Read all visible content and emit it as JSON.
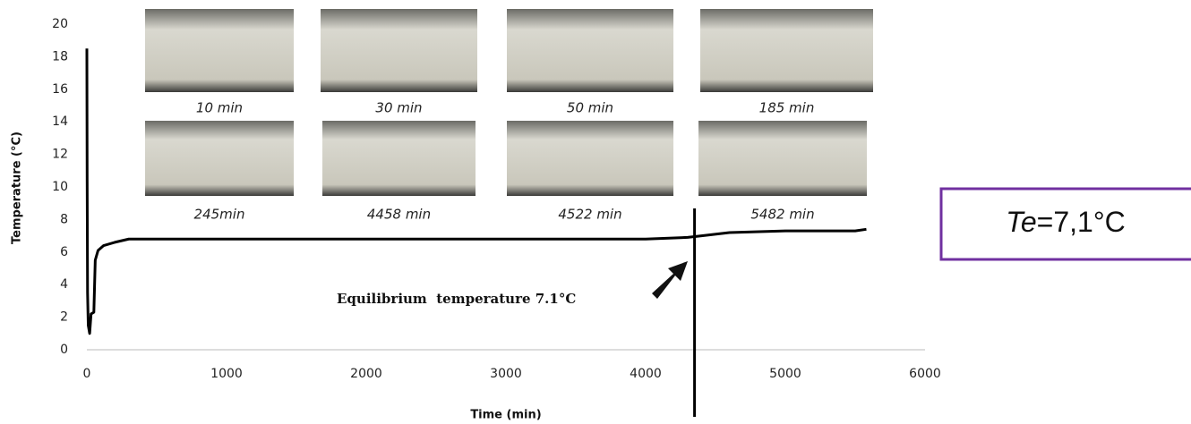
{
  "chart_data": {
    "type": "line",
    "x_label": "Time (min)",
    "y_label": "Temperature (°C)",
    "xlim": [
      0,
      6000
    ],
    "xticks": [
      0,
      1000,
      2000,
      3000,
      4000,
      5000,
      6000
    ],
    "ylim": [
      0,
      20
    ],
    "yticks": [
      0,
      2,
      4,
      6,
      8,
      10,
      12,
      14,
      16,
      18,
      20
    ],
    "series": [
      {
        "color": "#000000",
        "x": [
          0,
          2,
          5,
          10,
          20,
          30,
          50,
          60,
          80,
          120,
          200,
          300,
          1000,
          2000,
          3000,
          4000,
          4300,
          4400,
          4600,
          5000,
          5500,
          5580
        ],
        "values": [
          18.5,
          10.5,
          3.5,
          1.5,
          1.0,
          2.2,
          2.3,
          5.5,
          6.1,
          6.4,
          6.6,
          6.8,
          6.8,
          6.8,
          6.8,
          6.8,
          6.9,
          7.0,
          7.2,
          7.3,
          7.3,
          7.4
        ]
      }
    ],
    "vline_x": 4350,
    "photo_captions": [
      "10 min",
      "30 min",
      "50 min",
      "185 min",
      "245min",
      "4458 min",
      "4522 min",
      "5482 min"
    ],
    "annotation": "Equilibrium  temperature 7.1°C",
    "callout": [
      "Te",
      "=7,1°C"
    ]
  }
}
